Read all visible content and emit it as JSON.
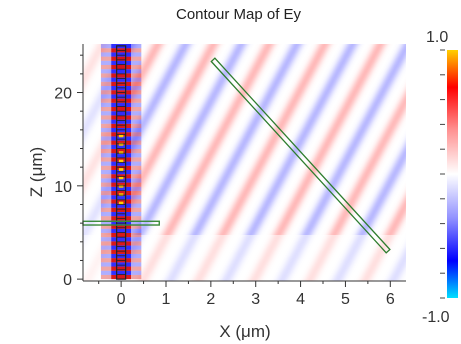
{
  "chart_data": {
    "type": "heatmap",
    "title": "Contour Map of Ey",
    "xlabel": "X (μm)",
    "ylabel": "Z (μm)",
    "xlim": [
      -0.85,
      6.35
    ],
    "ylim": [
      -0.2,
      25.2
    ],
    "x_ticks": [
      0,
      1,
      2,
      3,
      4,
      5,
      6
    ],
    "y_ticks": [
      0,
      10,
      20
    ],
    "colorbar": {
      "min": -1.0,
      "max": 1.0,
      "min_label": "-1.0",
      "max_label": "1.0",
      "colors": [
        "#00e0ff",
        "#0000ff",
        "#8080ff",
        "#ffffff",
        "#ff8080",
        "#ff0000",
        "#ffd000"
      ]
    },
    "overlays": [
      {
        "name": "vertical-waveguide",
        "x": [
          -0.1,
          0.1
        ],
        "z": [
          0,
          25
        ]
      },
      {
        "name": "horizontal-waveguide",
        "x": [
          -0.85,
          0.85
        ],
        "z": [
          5.8,
          6.2
        ]
      },
      {
        "name": "diagonal-grating",
        "from": [
          2.05,
          23.5
        ],
        "to": [
          5.95,
          3.0
        ]
      }
    ]
  }
}
